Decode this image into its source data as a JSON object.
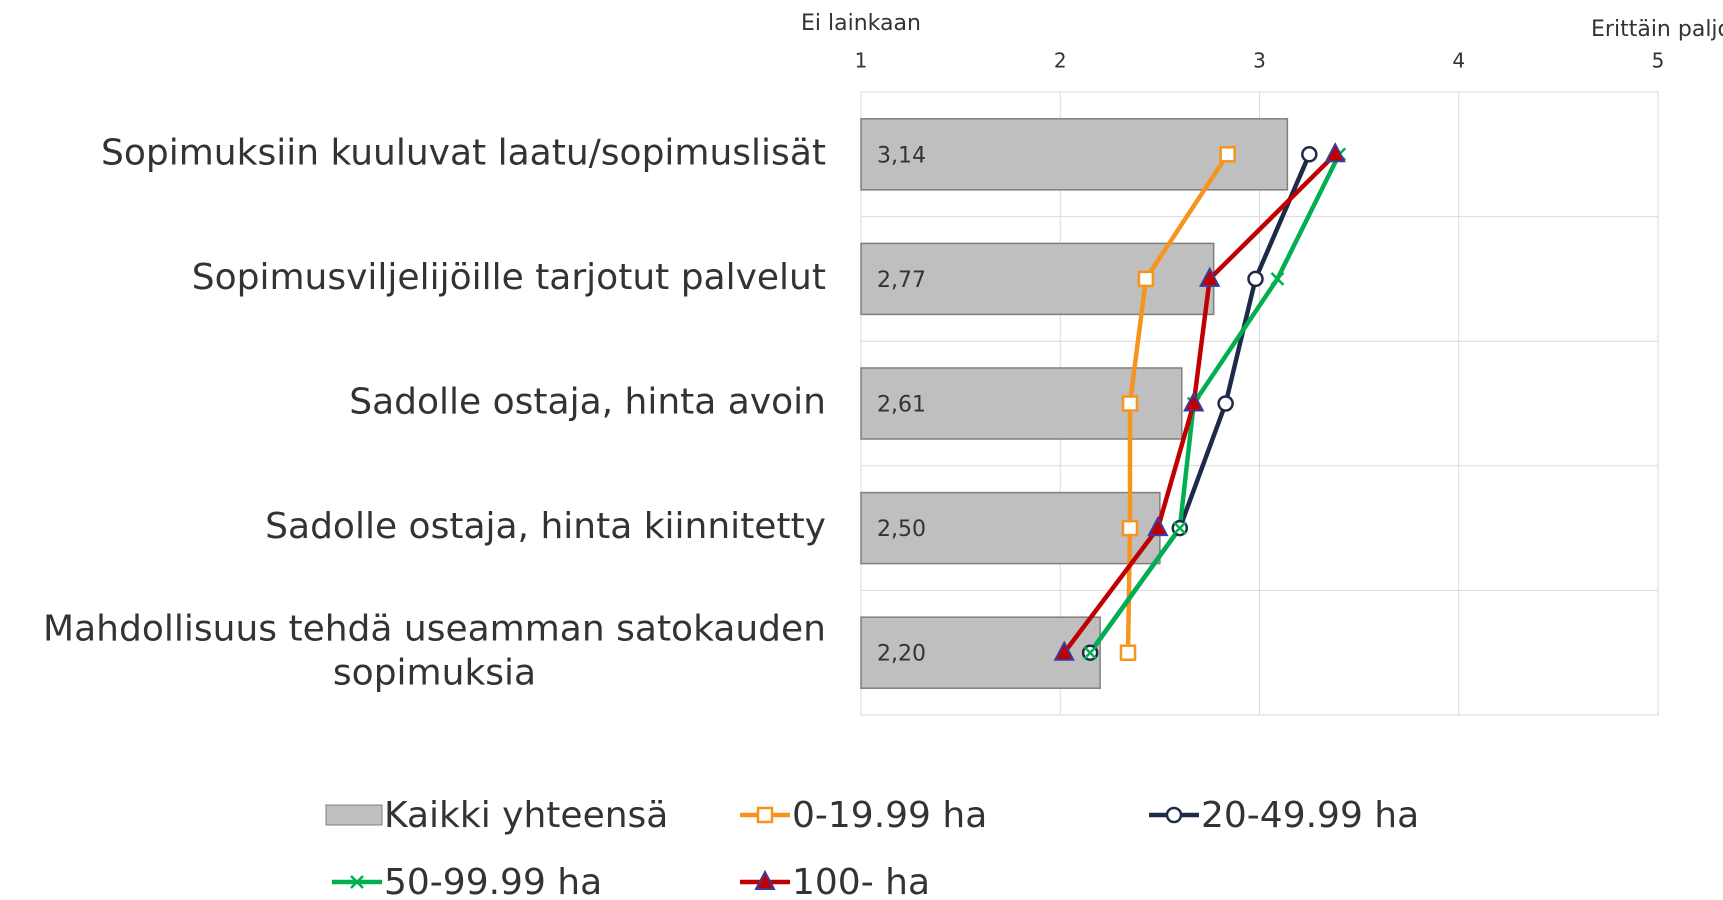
{
  "chart_data": {
    "type": "bar",
    "orientation": "horizontal",
    "x_annotations": [
      "Ei lainkaan",
      "Erittäin paljon"
    ],
    "categories": [
      "Sopimuksiin kuuluvat laatu/sopimuslisät",
      "Sopimusviljelijöille tarjotut palvelut",
      "Sadolle ostaja, hinta avoin",
      "Sadolle ostaja, hinta kiinnitetty",
      "Mahdollisuus tehdä useamman satokauden sopimuksia"
    ],
    "series": [
      {
        "name": "Kaikki yhteensä",
        "type": "bar",
        "color": "#bfbfbf",
        "values": [
          3.14,
          2.77,
          2.61,
          2.5,
          2.2
        ],
        "value_labels": [
          "3,14",
          "2,77",
          "2,61",
          "2,50",
          "2,20"
        ]
      },
      {
        "name": "0-19.99 ha",
        "type": "line",
        "marker": "square",
        "color": "#f7941d",
        "values": [
          2.84,
          2.43,
          2.35,
          2.35,
          2.34
        ]
      },
      {
        "name": "20-49.99 ha",
        "type": "line",
        "marker": "circle",
        "color": "#1f2a48",
        "values": [
          3.25,
          2.98,
          2.83,
          2.6,
          2.15
        ]
      },
      {
        "name": "50-99.99 ha",
        "type": "line",
        "marker": "x",
        "color": "#00b050",
        "values": [
          3.4,
          3.09,
          2.67,
          2.6,
          2.15
        ]
      },
      {
        "name": "100- ha",
        "type": "line",
        "marker": "triangle",
        "color": "#c00000",
        "values": [
          3.38,
          2.75,
          2.67,
          2.49,
          2.02
        ]
      }
    ],
    "xlim": [
      1,
      5
    ],
    "xticks": [
      1,
      2,
      3,
      4,
      5
    ],
    "grid": true
  }
}
